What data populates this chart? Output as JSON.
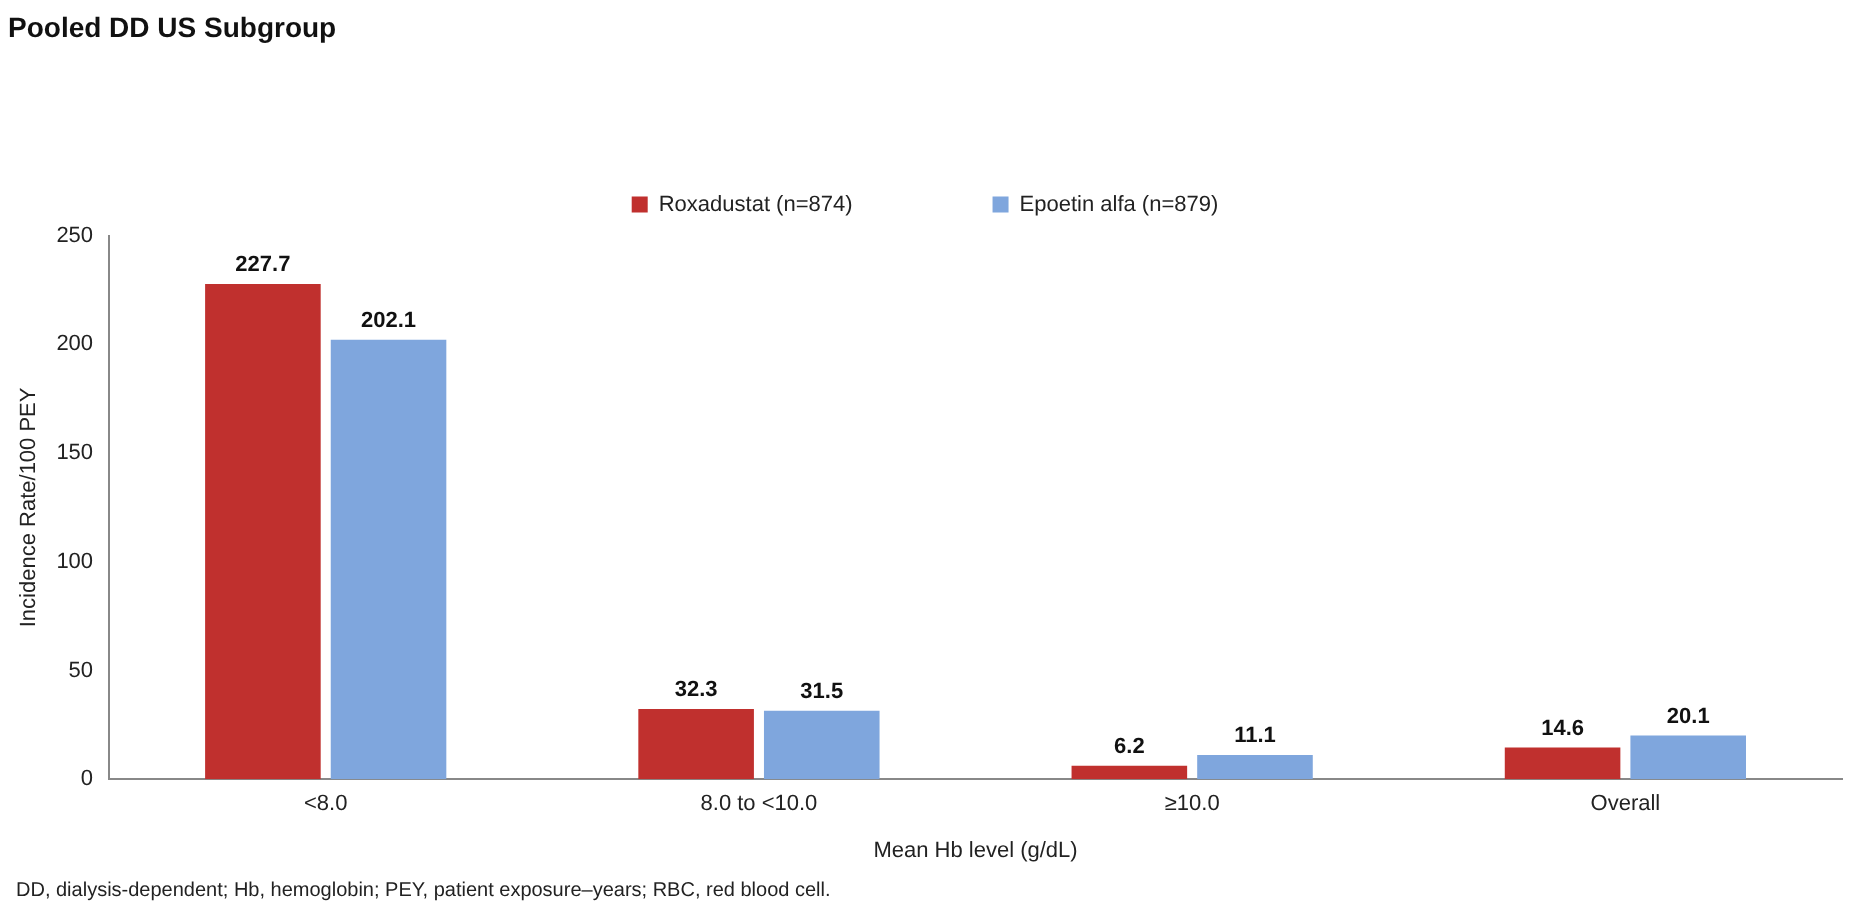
{
  "chart_data": {
    "type": "bar",
    "title": "Pooled DD US Subgroup",
    "xlabel": "Mean Hb level (g/dL)",
    "ylabel": "Incidence Rate/100 PEY",
    "categories": [
      "<8.0",
      "8.0 to <10.0",
      "≥10.0",
      "Overall"
    ],
    "series": [
      {
        "name": "Roxadustat (n=874)",
        "color": "#c0302e",
        "values": [
          227.7,
          32.3,
          6.2,
          14.6
        ]
      },
      {
        "name": "Epoetin alfa (n=879)",
        "color": "#7fa6dd",
        "values": [
          202.1,
          31.5,
          11.1,
          20.1
        ]
      }
    ],
    "ylim": [
      0,
      250
    ],
    "yticks": [
      0,
      50,
      100,
      150,
      200,
      250
    ],
    "grid": false,
    "legend": "top",
    "data_labels": true,
    "annotations": [
      "DD, dialysis-dependent; Hb, hemoglobin; PEY, patient exposure–years; RBC, red blood cell."
    ]
  }
}
